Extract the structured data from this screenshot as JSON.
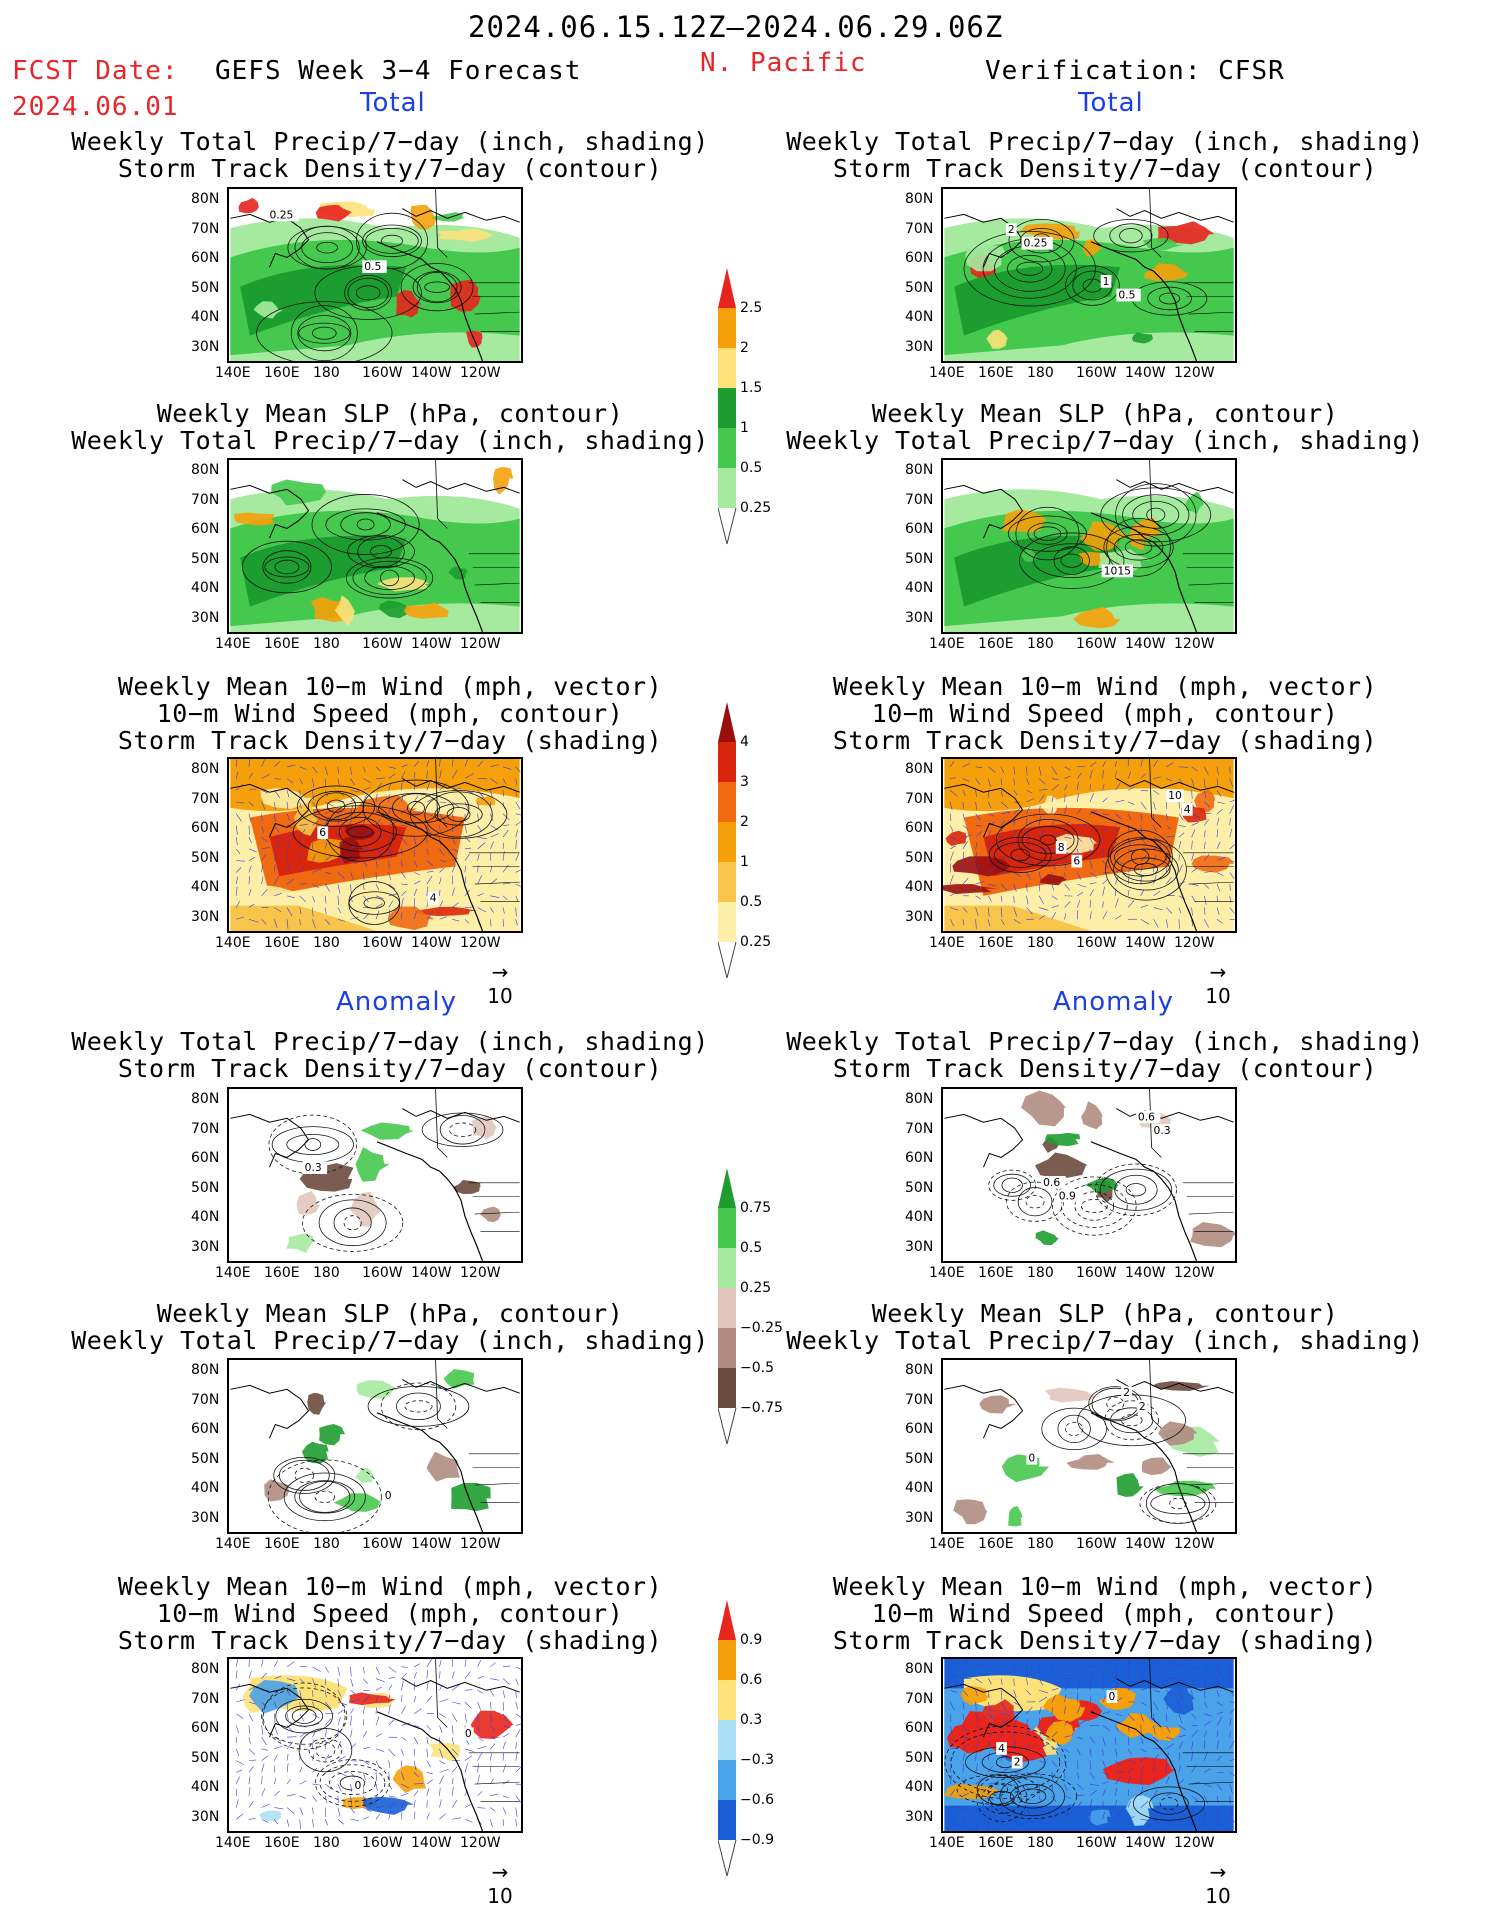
{
  "header": {
    "period": "2024.06.15.12Z–2024.06.29.06Z",
    "fcst_label": "FCST Date:",
    "fcst_date": "2024.06.01",
    "model": "GEFS Week 3−4 Forecast",
    "region": "N. Pacific",
    "verification": "Verification: CFSR"
  },
  "sections": {
    "total": "Total",
    "anomaly": "Anomaly"
  },
  "titles": {
    "precip_storm": [
      "Weekly Total Precip/7−day (inch, shading)",
      "Storm Track Density/7−day (contour)"
    ],
    "slp_precip": [
      "Weekly Mean SLP (hPa, contour)",
      "Weekly Total Precip/7−day (inch, shading)"
    ],
    "wind_storm": [
      "Weekly Mean 10−m Wind (mph, vector)",
      "10−m Wind Speed (mph, contour)",
      "Storm Track Density/7−day (shading)"
    ]
  },
  "axes": {
    "lat": [
      "80N",
      "70N",
      "60N",
      "50N",
      "40N",
      "30N"
    ],
    "lon": [
      "140E",
      "160E",
      "180",
      "160W",
      "140W",
      "120W"
    ]
  },
  "vector_ref": "10",
  "contour_labels": {
    "l1": [
      "0.25",
      "0.5"
    ],
    "r1": [
      "0.25",
      "0.5",
      "2",
      "1"
    ],
    "r2": [
      "1015"
    ],
    "l3": [
      "4",
      "6"
    ],
    "r3": [
      "4",
      "6",
      "10",
      "8"
    ],
    "l4": [
      "0.3"
    ],
    "r4": [
      "0.9",
      "0.3",
      "0.6",
      "0.6"
    ],
    "l5": [
      "0"
    ],
    "r5": [
      "2",
      "0",
      "2"
    ],
    "l6": [
      "0",
      "0"
    ],
    "r6": [
      "2",
      "0",
      "4"
    ]
  },
  "colorbars": {
    "precip_total": {
      "labels": [
        "2.5",
        "2",
        "1.5",
        "1",
        "0.5",
        "0.25"
      ],
      "colors": [
        "#e8231d",
        "#f5a00a",
        "#fde27a",
        "#1b9e2f",
        "#44c94e",
        "#a6eaa0"
      ]
    },
    "storm_total": {
      "labels": [
        "4",
        "3",
        "2",
        "1",
        "0.5",
        "0.25"
      ],
      "colors": [
        "#9a0e0e",
        "#d8260c",
        "#f06a12",
        "#f5a00a",
        "#f8c44a",
        "#fdeea8"
      ]
    },
    "precip_anom": {
      "labels": [
        "0.75",
        "0.5",
        "0.25",
        "−0.25",
        "−0.5",
        "−0.75"
      ],
      "colors": [
        "#1f9c30",
        "#47c84f",
        "#a6eaa0",
        "#e2c6bc",
        "#b08c80",
        "#6b4a3e"
      ]
    },
    "storm_anom": {
      "labels": [
        "0.9",
        "0.6",
        "0.3",
        "−0.3",
        "−0.6",
        "−0.9"
      ],
      "colors": [
        "#e8261d",
        "#f5a00a",
        "#fde27a",
        "#a9e2f5",
        "#4aa2e9",
        "#1a5fd6"
      ]
    }
  }
}
